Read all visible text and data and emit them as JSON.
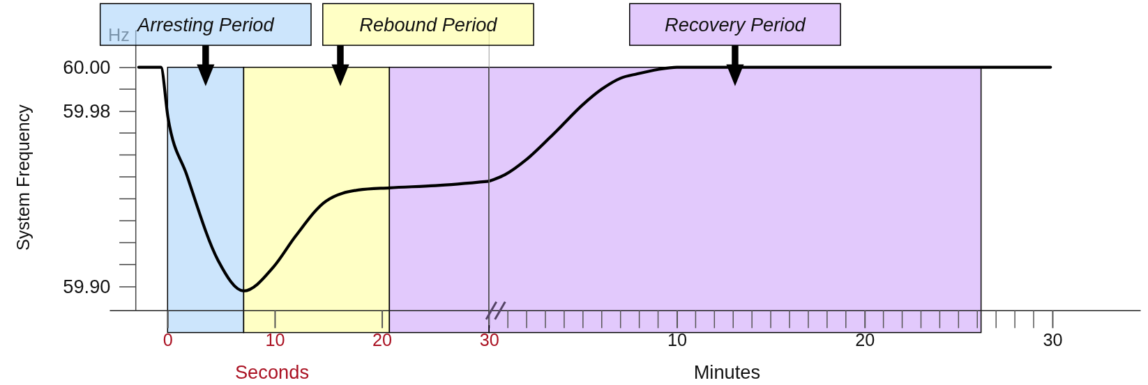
{
  "chart_data": [
    {
      "type": "line",
      "ylabel": "System Frequency",
      "xlabel": "Seconds",
      "annotations": [
        "Hz"
      ],
      "x": [
        -2.7,
        -0.63,
        0.04,
        1.78,
        4.7,
        7.1,
        9.9,
        11.95,
        14.8,
        17.8,
        20.7,
        25,
        30
      ],
      "series": [
        {
          "color": "#000000",
          "values": [
            60.0,
            60.0,
            59.977,
            59.951,
            59.912,
            59.898,
            59.909,
            59.923,
            59.939,
            59.944,
            59.945,
            59.946,
            59.948
          ]
        }
      ],
      "xlim": [
        -3,
        30
      ],
      "xticks": [
        0,
        10,
        20,
        30
      ],
      "ylim": [
        59.889,
        60.017
      ],
      "yticks": [
        {
          "value": 60.0,
          "label": "60.00"
        },
        {
          "value": 59.98,
          "label": "59.98"
        },
        {
          "value": 59.9,
          "label": "59.90"
        }
      ],
      "bands": [
        {
          "axis": "x",
          "from": 0,
          "to": 7.1,
          "label": "Arresting Period",
          "color": "#aad4fa"
        },
        {
          "axis": "x",
          "from": 7.1,
          "to": 20.7,
          "label": "Rebound Period",
          "color": "#ffff9f"
        },
        {
          "axis": "x",
          "from": 20.7,
          "to": 30,
          "color": "#cfa5fa"
        }
      ],
      "line_style": "solid"
    },
    {
      "type": "line",
      "xlabel": "Minutes",
      "x": [
        0,
        0.85,
        2,
        3.6,
        5,
        6,
        7,
        7.9,
        9,
        10,
        20,
        26.2,
        29.9
      ],
      "series": [
        {
          "color": "#000000",
          "values": [
            59.948,
            59.951,
            59.958,
            59.971,
            59.983,
            59.99,
            59.995,
            59.997,
            59.999,
            60.0,
            60.0,
            60.0,
            60.0
          ]
        }
      ],
      "xlim": [
        0,
        34.7
      ],
      "xticks": [
        10,
        20,
        30
      ],
      "ylim": [
        59.889,
        60.017
      ],
      "tick_labels": "x",
      "bands": [
        {
          "axis": "x",
          "from": 0,
          "to": 26.2,
          "label": "Recovery Period",
          "color": "#cfa5fa"
        }
      ],
      "line_style": "solid"
    }
  ]
}
